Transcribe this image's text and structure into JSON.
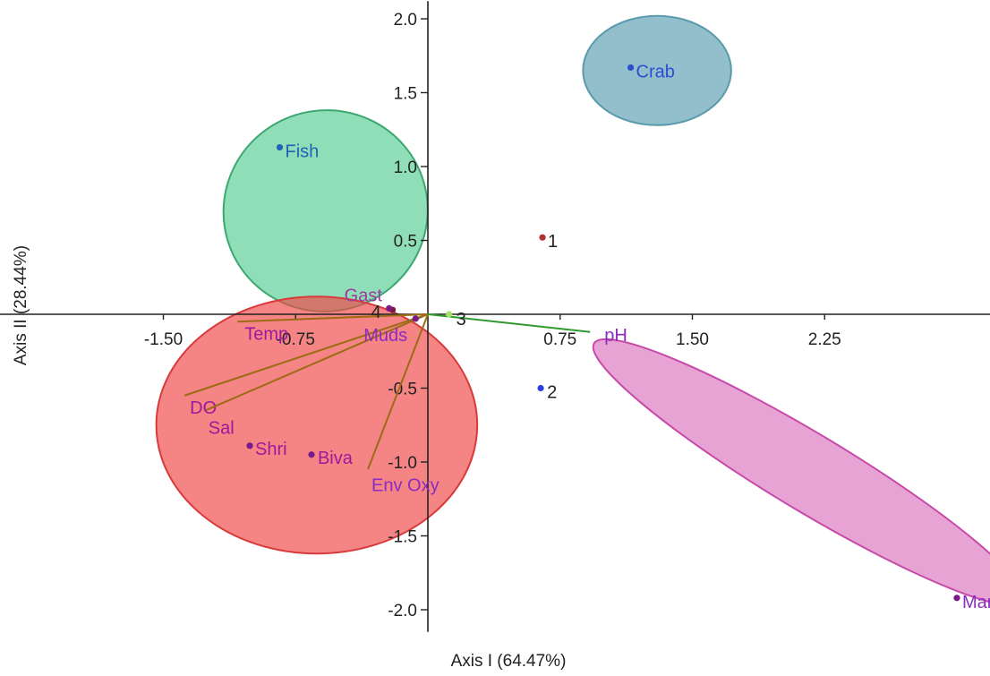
{
  "chart_data": {
    "type": "scatter",
    "subtype": "biplot",
    "title": "",
    "xlabel": "Axis I (64.47%)",
    "ylabel": "Axis II (28.44%)",
    "xlim": [
      -2.8,
      3.35
    ],
    "ylim": [
      -2.15,
      2.12
    ],
    "x_ticks": [
      -1.5,
      -0.75,
      0.75,
      1.5,
      2.25
    ],
    "x_tick_labels": [
      "-1.50",
      "-0.75",
      "0.75",
      "1.50",
      "2.25"
    ],
    "y_ticks": [
      2.0,
      1.5,
      1.0,
      0.5,
      -0.5,
      -1.0,
      -1.5,
      -2.0
    ],
    "y_tick_labels": [
      "2.0",
      "1.5",
      "1.0",
      "0.5",
      "-0.5",
      "-1.0",
      "-1.5",
      "-2.0"
    ],
    "grid": false,
    "legend": "none",
    "points": [
      {
        "label": "Crab",
        "x": 1.15,
        "y": 1.67,
        "color": "#2a4fd1",
        "label_color": "#2a4fd1"
      },
      {
        "label": "Fish",
        "x": -0.84,
        "y": 1.13,
        "color": "#1f62b8",
        "label_color": "#1f62b8"
      },
      {
        "label": "1",
        "x": 0.65,
        "y": 0.52,
        "color": "#b03030",
        "label_color": "#222222"
      },
      {
        "label": "2",
        "x": 0.64,
        "y": -0.5,
        "color": "#2b3fe0",
        "label_color": "#222222"
      },
      {
        "label": "3",
        "x": 0.12,
        "y": 0.0,
        "color": "#a6e06a",
        "label_color": "#222222"
      },
      {
        "label": "4",
        "x": -0.2,
        "y": 0.03,
        "color": "#7a1a3a",
        "label_color": "#222222"
      },
      {
        "label": "Gast",
        "x": -0.22,
        "y": 0.04,
        "color": "#7a1a8a",
        "label_color": "#9b3aa0"
      },
      {
        "label": "Muds",
        "x": -0.07,
        "y": -0.03,
        "color": "#7a1a8a",
        "label_color": "#8b2bc2"
      },
      {
        "label": "Shri",
        "x": -1.01,
        "y": -0.89,
        "color": "#7a1a8a",
        "label_color": "#9b1a9b"
      },
      {
        "label": "Biva",
        "x": -0.66,
        "y": -0.95,
        "color": "#7a1a8a",
        "label_color": "#9b1a9b"
      },
      {
        "label": "Mang",
        "x": 3.0,
        "y": -1.92,
        "color": "#7a1a8a",
        "label_color": "#8b2bc2"
      }
    ],
    "vectors": [
      {
        "label": "Temp",
        "x": -1.08,
        "y": -0.05,
        "color": "#9c6b14",
        "label_color": "#9b1a9b"
      },
      {
        "label": "DO",
        "x": -1.38,
        "y": -0.55,
        "color": "#9c6b14",
        "label_color": "#9b1a9b"
      },
      {
        "label": "Sal",
        "x": -1.26,
        "y": -0.65,
        "color": "#9c6b14",
        "label_color": "#9b1a9b"
      },
      {
        "label": "Env Oxy",
        "x": -0.34,
        "y": -1.05,
        "color": "#9c6b14",
        "label_color": "#8b2bc2"
      },
      {
        "label": "pH",
        "x": 0.92,
        "y": -0.12,
        "color": "#2e9a2e",
        "label_color": "#8b2bc2"
      }
    ],
    "groups": [
      {
        "shape": "ellipse",
        "cx": -0.58,
        "cy": 0.7,
        "rx": 0.58,
        "ry": 0.68,
        "rotation_deg": -18,
        "fill": "#4cc98a",
        "stroke": "#3aa870",
        "opacity": 0.62
      },
      {
        "shape": "ellipse",
        "cx": 1.3,
        "cy": 1.65,
        "rx": 0.42,
        "ry": 0.37,
        "rotation_deg": 0,
        "fill": "#6aa6b8",
        "stroke": "#5a9aad",
        "opacity": 0.72
      },
      {
        "shape": "ellipse",
        "cx": -0.63,
        "cy": -0.75,
        "rx": 0.91,
        "ry": 0.87,
        "rotation_deg": 0,
        "fill": "#f04a4a",
        "stroke": "#d83a3a",
        "opacity": 0.68
      },
      {
        "shape": "ellipse",
        "cx": 2.16,
        "cy": -1.07,
        "rx": 1.42,
        "ry": 0.26,
        "rotation_deg": 31,
        "fill": "#de80c4",
        "stroke": "#c84aa8",
        "opacity": 0.72
      }
    ]
  }
}
